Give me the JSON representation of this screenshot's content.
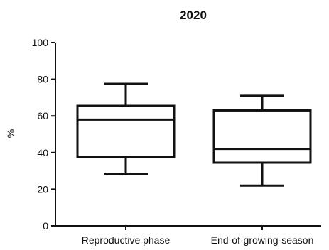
{
  "chart_data": {
    "type": "box",
    "title": "2020",
    "ylabel": "%",
    "xlabel": "",
    "ylim": [
      0,
      100
    ],
    "yticks": [
      0,
      20,
      40,
      60,
      80,
      100
    ],
    "categories": [
      "Reproductive phase",
      "End-of-growing-season"
    ],
    "boxes": [
      {
        "category": "Reproductive phase",
        "min": 28.5,
        "q1": 37.5,
        "median": 58,
        "q3": 65.5,
        "max": 77.5
      },
      {
        "category": "End-of-growing-season",
        "min": 22,
        "q1": 34.5,
        "median": 42,
        "q3": 63,
        "max": 71
      }
    ],
    "grid": false
  }
}
